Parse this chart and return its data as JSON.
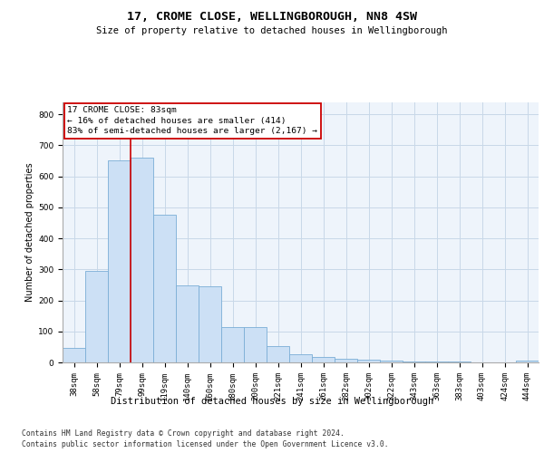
{
  "title1": "17, CROME CLOSE, WELLINGBOROUGH, NN8 4SW",
  "title2": "Size of property relative to detached houses in Wellingborough",
  "xlabel": "Distribution of detached houses by size in Wellingborough",
  "ylabel": "Number of detached properties",
  "footer1": "Contains HM Land Registry data © Crown copyright and database right 2024.",
  "footer2": "Contains public sector information licensed under the Open Government Licence v3.0.",
  "annotation_title": "17 CROME CLOSE: 83sqm",
  "annotation_line2": "← 16% of detached houses are smaller (414)",
  "annotation_line3": "83% of semi-detached houses are larger (2,167) →",
  "bar_labels": [
    "38sqm",
    "58sqm",
    "79sqm",
    "99sqm",
    "119sqm",
    "140sqm",
    "160sqm",
    "180sqm",
    "200sqm",
    "221sqm",
    "241sqm",
    "261sqm",
    "282sqm",
    "302sqm",
    "322sqm",
    "343sqm",
    "363sqm",
    "383sqm",
    "403sqm",
    "424sqm",
    "444sqm"
  ],
  "bar_values": [
    47,
    295,
    652,
    660,
    477,
    248,
    246,
    115,
    115,
    52,
    27,
    17,
    13,
    8,
    5,
    4,
    3,
    2,
    1,
    0,
    7
  ],
  "bar_color": "#cce0f5",
  "bar_edge_color": "#7aaed6",
  "grid_color": "#c8d8e8",
  "bg_color": "#eef4fb",
  "vline_x": 2.5,
  "vline_color": "#cc0000",
  "annotation_box_color": "#cc0000",
  "ylim": [
    0,
    840
  ],
  "yticks": [
    0,
    100,
    200,
    300,
    400,
    500,
    600,
    700,
    800
  ],
  "title1_fontsize": 9.5,
  "title2_fontsize": 7.5,
  "xlabel_fontsize": 7.5,
  "ylabel_fontsize": 7,
  "tick_fontsize": 6.5,
  "annotation_fontsize": 6.8,
  "footer_fontsize": 5.8
}
